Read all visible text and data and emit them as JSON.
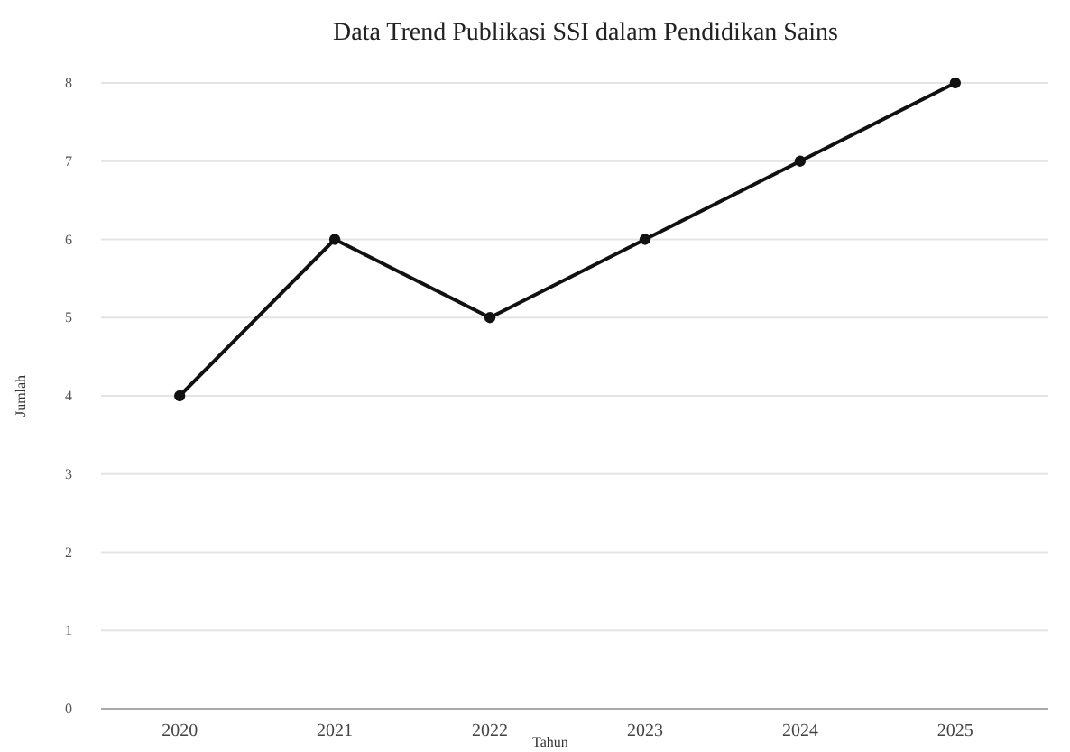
{
  "chart_data": {
    "type": "line",
    "title": "Data Trend Publikasi SSI dalam Pendidikan Sains",
    "xlabel": "Tahun",
    "ylabel": "Jumlah",
    "categories": [
      "2020",
      "2021",
      "2022",
      "2023",
      "2024",
      "2025"
    ],
    "series": [
      {
        "color": "#111111",
        "values": [
          4,
          6,
          5,
          6,
          7,
          8
        ]
      }
    ],
    "ylim": [
      0,
      8
    ],
    "yticks": [
      0,
      1,
      2,
      3,
      4,
      5,
      6,
      7,
      8
    ],
    "grid": "y",
    "marker": "circle",
    "line_style": "solid"
  }
}
